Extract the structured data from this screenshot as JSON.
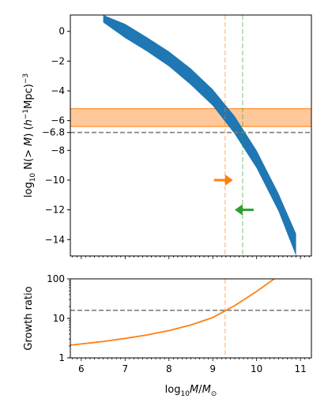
{
  "colors": {
    "band": "#1f77b4",
    "orange": "#ff7f0e",
    "green": "#2ca02c",
    "ref_gray": "#7f7f7f",
    "orange_band": "#ffc89b",
    "orange_band_edge": "#ff7f0e"
  },
  "chart_data": [
    {
      "type": "area",
      "ylabel_parts": [
        "log",
        "10",
        " N(> ",
        "M",
        ") (",
        "h",
        "−1",
        "Mpc)",
        "−3"
      ],
      "xlim": [
        5.75,
        11.25
      ],
      "ylim": [
        -15.1,
        1.1
      ],
      "yticks": [
        0,
        -2,
        -4,
        -6,
        -8,
        -10,
        -12,
        -14
      ],
      "ytick_labels": [
        "0",
        "−2",
        "−4",
        "−6",
        "−8",
        "−10",
        "−12",
        "−14"
      ],
      "extra_ytick": {
        "value": -6.8,
        "label": "−6.8"
      },
      "series": [
        {
          "x": [
            6.5,
            7.0,
            7.5,
            8.0,
            8.5,
            9.0,
            9.5,
            10.0,
            10.5,
            10.9
          ],
          "lower": [
            0.6,
            -0.45,
            -1.35,
            -2.35,
            -3.6,
            -5.0,
            -6.9,
            -9.2,
            -12.1,
            -15.1
          ],
          "upper": [
            1.1,
            0.5,
            -0.4,
            -1.35,
            -2.5,
            -3.9,
            -5.7,
            -8.0,
            -10.9,
            -13.6
          ]
        }
      ],
      "hspan": [
        -6.4,
        -5.2
      ],
      "hline": -6.8,
      "vlines": [
        {
          "x": 9.28,
          "color": "orange"
        },
        {
          "x": 9.68,
          "color": "green"
        }
      ],
      "arrows": [
        {
          "x": 9.28,
          "y": -10.0,
          "direction": "right",
          "color": "orange"
        },
        {
          "x": 9.68,
          "y": -12.0,
          "direction": "left",
          "color": "green"
        }
      ]
    },
    {
      "type": "line",
      "ylabel": "Growth ratio",
      "xlabel_parts": [
        "log",
        "10",
        "M",
        "/",
        "M",
        "⊙"
      ],
      "xlim": [
        5.75,
        11.25
      ],
      "ylim": [
        1,
        100
      ],
      "yscale": "log",
      "yticks": [
        1,
        10,
        100
      ],
      "ytick_labels": [
        "1",
        "10",
        "100"
      ],
      "xticks": [
        6,
        7,
        8,
        9,
        10,
        11
      ],
      "xtick_labels": [
        "6",
        "7",
        "8",
        "9",
        "10",
        "11"
      ],
      "series": [
        {
          "x": [
            5.75,
            6.0,
            6.5,
            7.0,
            7.5,
            8.0,
            8.5,
            9.0,
            9.28,
            9.5,
            10.0,
            10.4
          ],
          "y": [
            2.1,
            2.25,
            2.6,
            3.1,
            3.8,
            4.9,
            6.8,
            10.5,
            15.5,
            21,
            48,
            100
          ]
        }
      ],
      "hline": 16,
      "vline": 9.28
    }
  ]
}
